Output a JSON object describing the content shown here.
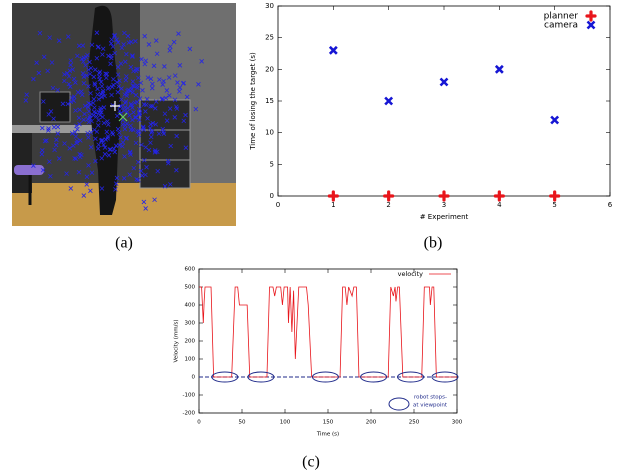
{
  "captions": [
    "(a)",
    "(b)",
    "(c)"
  ],
  "chart_data": [
    {
      "type": "scatter",
      "xlabel": "# Experiment",
      "ylabel": "Time of losing the target (s)",
      "x": [
        1,
        2,
        3,
        4,
        5
      ],
      "series": [
        {
          "name": "planner",
          "color": "#e8151b",
          "marker": "plus",
          "values": [
            0,
            0,
            0,
            0,
            0
          ]
        },
        {
          "name": "camera",
          "color": "#1616d4",
          "marker": "cross",
          "values": [
            23,
            15,
            18,
            20,
            12
          ]
        }
      ],
      "xlim": [
        0,
        6
      ],
      "xticks": [
        0,
        1,
        2,
        3,
        4,
        5,
        6
      ],
      "ylim": [
        0,
        30
      ],
      "yticks": [
        0,
        5,
        10,
        15,
        20,
        25,
        30
      ],
      "legend": "upper-right"
    },
    {
      "type": "line",
      "xlabel": "Time (s)",
      "ylabel": "Velocity (mm/s)",
      "x": [
        0,
        3,
        4,
        5,
        6,
        7,
        14,
        17,
        38,
        42,
        45,
        47,
        56,
        59,
        79,
        82,
        86,
        88,
        90,
        95,
        97,
        99,
        103,
        104,
        106,
        108,
        110,
        112,
        114,
        116,
        125,
        127,
        131,
        164,
        167,
        170,
        172,
        174,
        178,
        180,
        183,
        186,
        220,
        223,
        226,
        228,
        229,
        231,
        233,
        237,
        259,
        262,
        268,
        269,
        271,
        273,
        276,
        300
      ],
      "series": [
        {
          "name": "velocity",
          "color": "#e8151b",
          "values": [
            500,
            500,
            400,
            300,
            420,
            500,
            500,
            0,
            0,
            500,
            500,
            400,
            400,
            0,
            0,
            500,
            500,
            450,
            500,
            500,
            400,
            500,
            500,
            300,
            500,
            250,
            480,
            100,
            300,
            500,
            500,
            400,
            0,
            0,
            500,
            500,
            400,
            500,
            450,
            500,
            500,
            0,
            0,
            500,
            450,
            500,
            420,
            500,
            500,
            0,
            0,
            500,
            500,
            400,
            500,
            500,
            0,
            0
          ]
        }
      ],
      "xlim": [
        0,
        300
      ],
      "xticks": [
        0,
        50,
        100,
        150,
        200,
        250,
        300
      ],
      "ylim": [
        -200,
        600
      ],
      "yticks": [
        -200,
        -100,
        0,
        100,
        200,
        300,
        400,
        500,
        600
      ],
      "hline": 0,
      "stops": [
        30,
        72,
        147,
        203,
        246,
        286
      ],
      "annotation": [
        "robot stops-",
        "at viewpoint"
      ],
      "annotation_color": "#1f2a8a",
      "legend": "upper-right"
    }
  ]
}
